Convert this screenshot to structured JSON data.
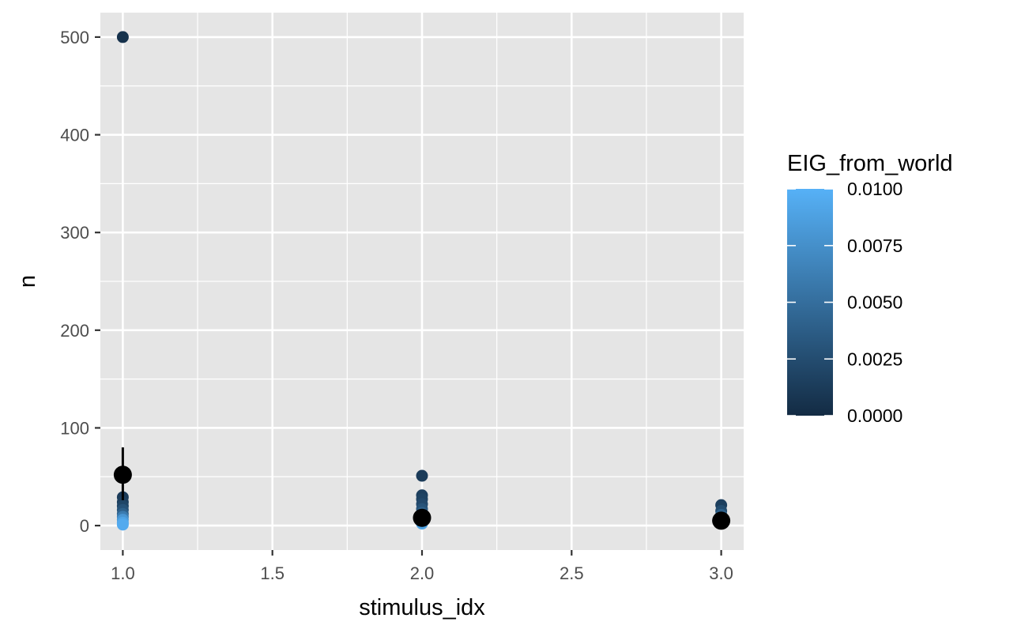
{
  "chart_data": {
    "type": "scatter",
    "xlabel": "stimulus_idx",
    "ylabel": "n",
    "xlim": [
      0.925,
      3.075
    ],
    "ylim": [
      -25,
      525
    ],
    "x_ticks": [
      1.0,
      1.5,
      2.0,
      2.5,
      3.0
    ],
    "x_tick_labels": [
      "1.0",
      "1.5",
      "2.0",
      "2.5",
      "3.0"
    ],
    "y_ticks": [
      0,
      100,
      200,
      300,
      400,
      500
    ],
    "y_tick_labels": [
      "0",
      "100",
      "200",
      "300",
      "400",
      "500"
    ],
    "grid": true,
    "colors": {
      "panel_background": "#e5e5e5",
      "grid": "#ffffff",
      "low": "#132b43",
      "high": "#56b1f7",
      "summary": "#000000"
    },
    "points": [
      {
        "x": 1,
        "y": 500,
        "color_value": 0.0005
      },
      {
        "x": 1,
        "y": 29,
        "color_value": 0.0012
      },
      {
        "x": 1,
        "y": 24,
        "color_value": 0.0015
      },
      {
        "x": 1,
        "y": 20,
        "color_value": 0.002
      },
      {
        "x": 1,
        "y": 16,
        "color_value": 0.003
      },
      {
        "x": 1,
        "y": 12,
        "color_value": 0.004
      },
      {
        "x": 1,
        "y": 9,
        "color_value": 0.006
      },
      {
        "x": 1,
        "y": 6,
        "color_value": 0.008
      },
      {
        "x": 1,
        "y": 3,
        "color_value": 0.009
      },
      {
        "x": 1,
        "y": 1,
        "color_value": 0.0095
      },
      {
        "x": 2,
        "y": 51,
        "color_value": 0.0012
      },
      {
        "x": 2,
        "y": 31,
        "color_value": 0.0015
      },
      {
        "x": 2,
        "y": 27,
        "color_value": 0.0018
      },
      {
        "x": 2,
        "y": 22,
        "color_value": 0.0022
      },
      {
        "x": 2,
        "y": 17,
        "color_value": 0.003
      },
      {
        "x": 2,
        "y": 13,
        "color_value": 0.004
      },
      {
        "x": 2,
        "y": 9,
        "color_value": 0.005
      },
      {
        "x": 2,
        "y": 5,
        "color_value": 0.007
      },
      {
        "x": 2,
        "y": 2,
        "color_value": 0.009
      },
      {
        "x": 3,
        "y": 21,
        "color_value": 0.0015
      },
      {
        "x": 3,
        "y": 15,
        "color_value": 0.0025
      },
      {
        "x": 3,
        "y": 11,
        "color_value": 0.004
      },
      {
        "x": 3,
        "y": 8,
        "color_value": 0.006
      },
      {
        "x": 3,
        "y": 5,
        "color_value": 0.008
      },
      {
        "x": 3,
        "y": 2,
        "color_value": 0.0095
      }
    ],
    "summary": [
      {
        "x": 1,
        "mean": 52,
        "lower": 26,
        "upper": 80
      },
      {
        "x": 2,
        "mean": 8,
        "lower": 4,
        "upper": 12
      },
      {
        "x": 3,
        "mean": 5,
        "lower": 3,
        "upper": 8
      }
    ],
    "legend": {
      "title": "EIG_from_world",
      "placement": "right",
      "min": 0,
      "max": 0.01,
      "breaks": [
        0,
        0.0025,
        0.005,
        0.0075,
        0.01
      ],
      "labels": [
        "0.0000",
        "0.0025",
        "0.0050",
        "0.0075",
        "0.0100"
      ]
    }
  }
}
